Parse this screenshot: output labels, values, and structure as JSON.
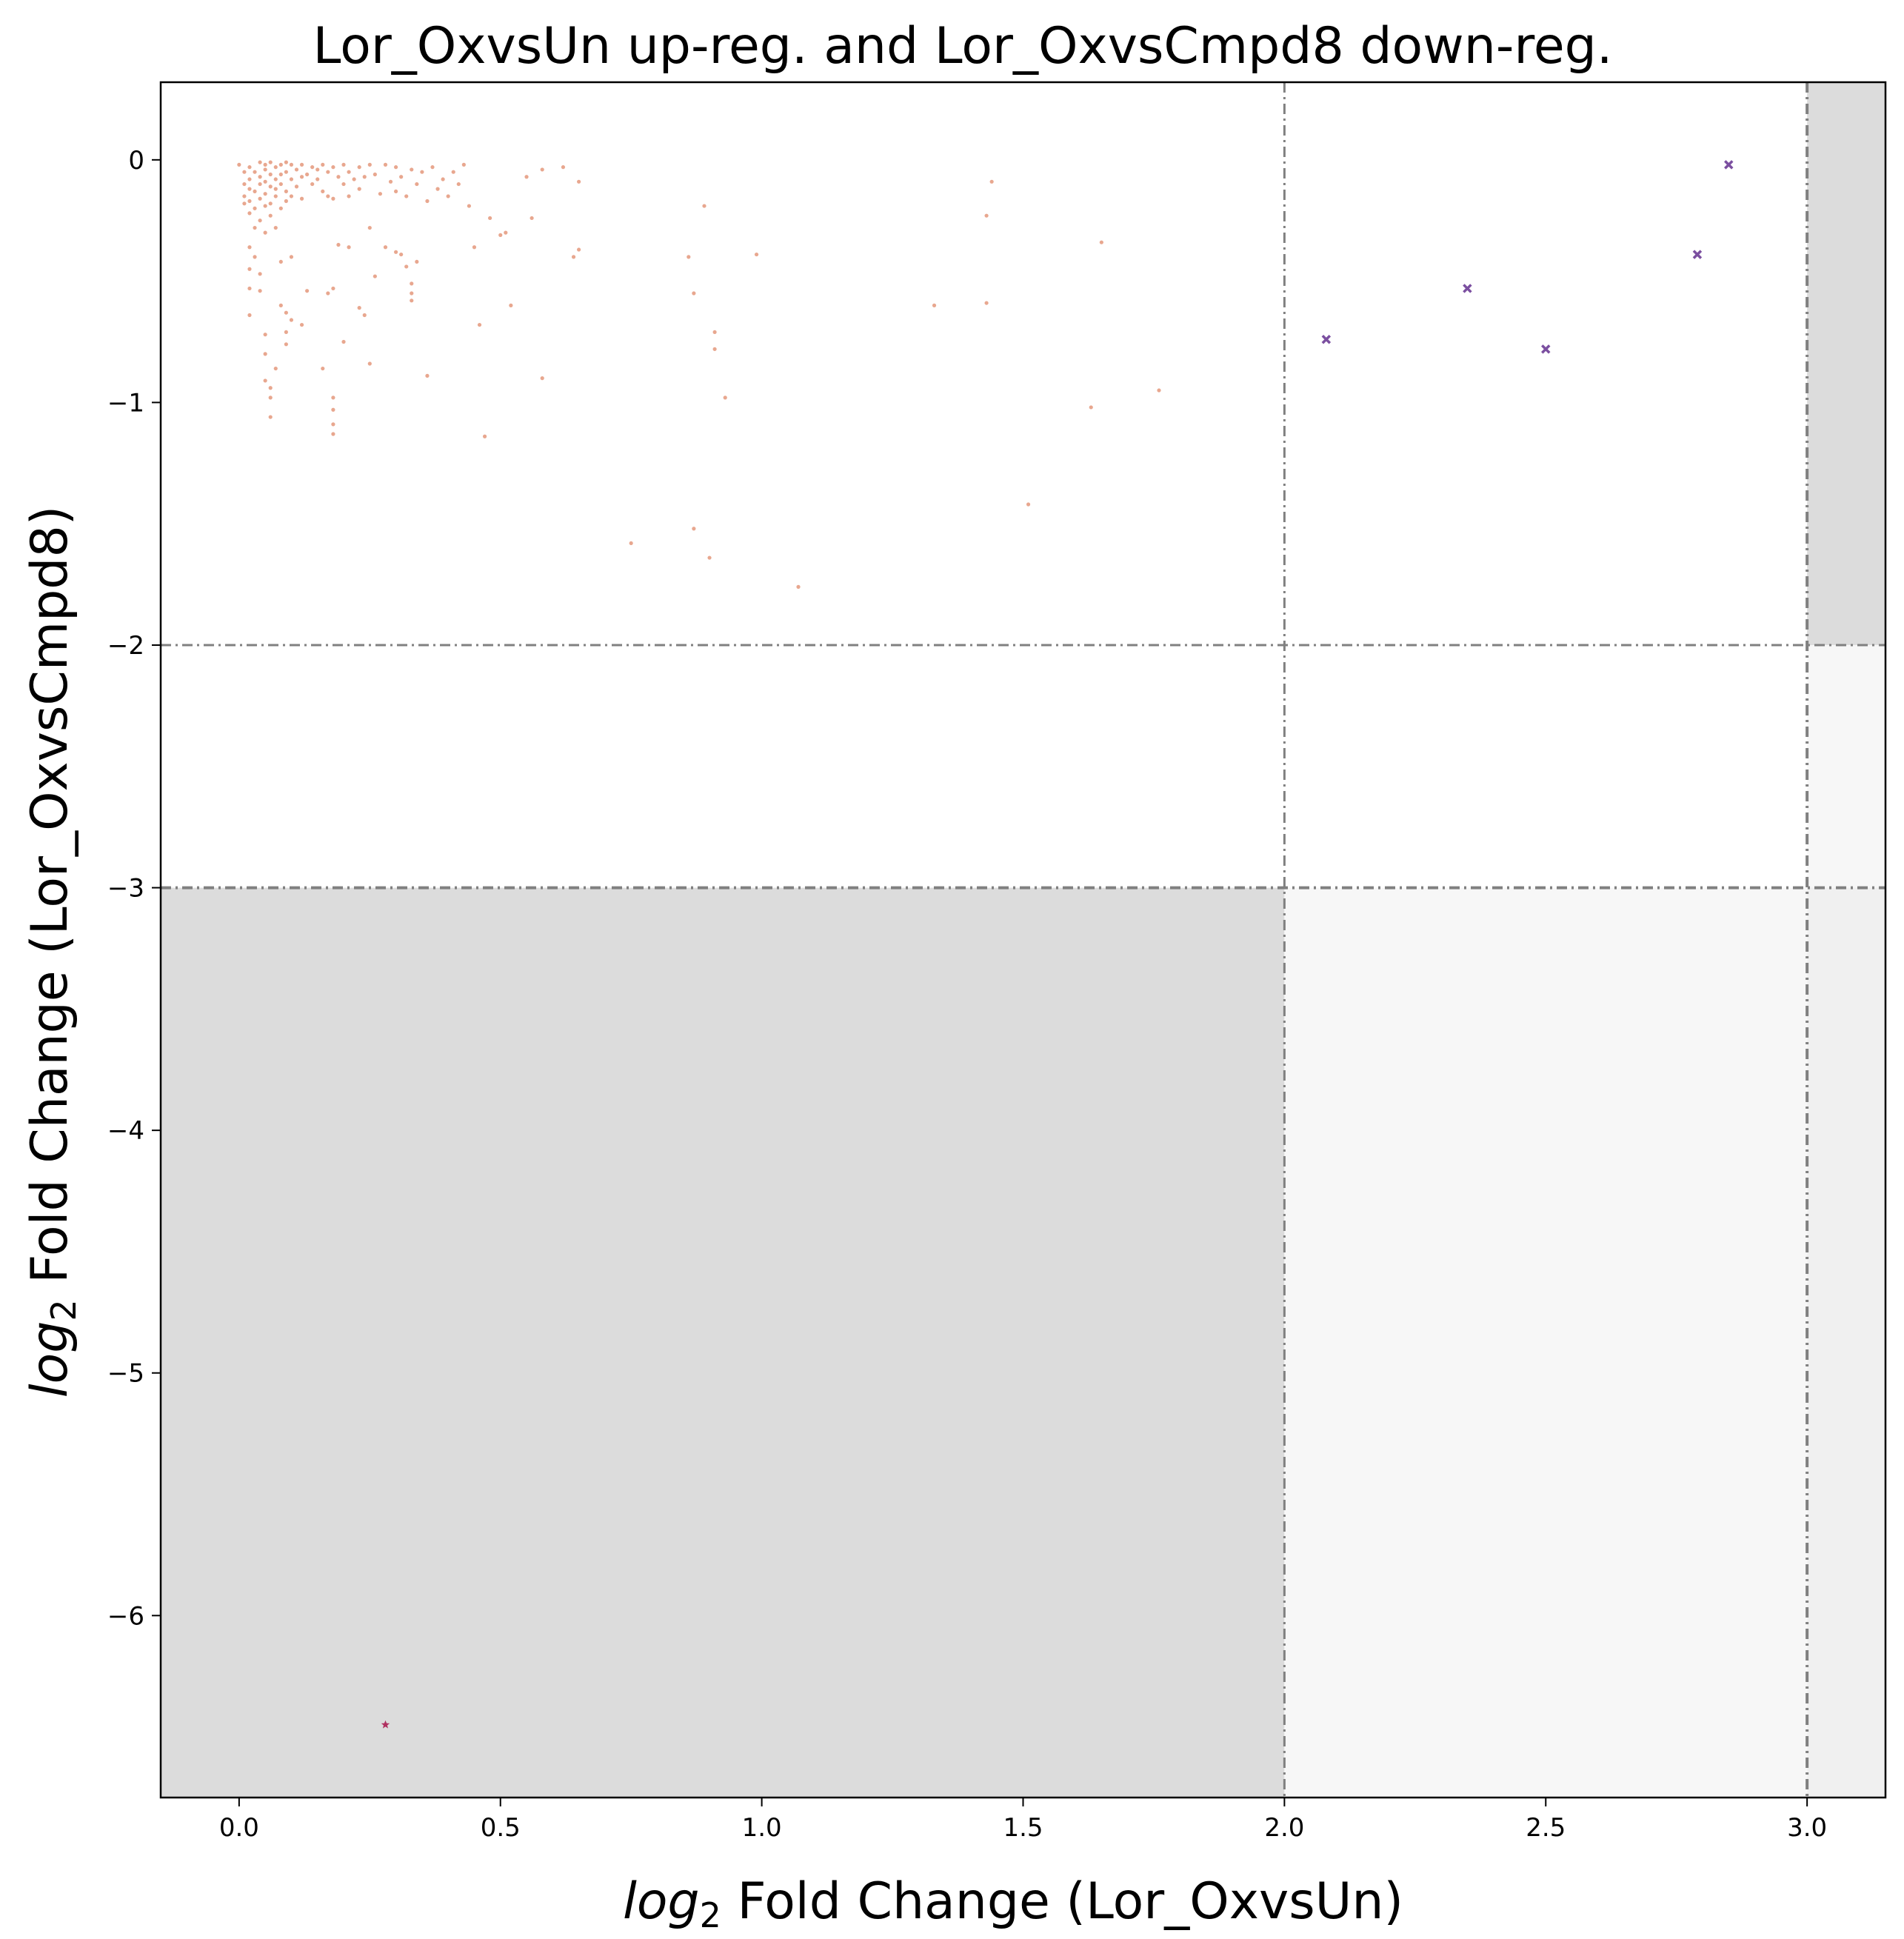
{
  "chart_data": {
    "type": "scatter",
    "title": "Lor_OxvsUn up-reg. and Lor_OxvsCmpd8 down-reg.",
    "xlabel": {
      "italic": "log",
      "sub": "2",
      "rest": " Fold Change (Lor_OxvsUn)"
    },
    "ylabel": {
      "italic": "log",
      "sub": "2",
      "rest": " Fold Change (Lor_OxvsCmpd8)"
    },
    "xlim": [
      -0.15,
      3.15
    ],
    "ylim": [
      -6.75,
      0.32
    ],
    "xticks": [
      0.0,
      0.5,
      1.0,
      1.5,
      2.0,
      2.5,
      3.0
    ],
    "xtick_labels": [
      "0.0",
      "0.5",
      "1.0",
      "1.5",
      "2.0",
      "2.5",
      "3.0"
    ],
    "yticks": [
      0,
      -1,
      -2,
      -3,
      -4,
      -5,
      -6
    ],
    "ytick_labels": [
      "0",
      "−1",
      "−2",
      "−3",
      "−4",
      "−5",
      "−6"
    ],
    "grid": false,
    "thresholds": {
      "x": [
        2.0,
        3.0
      ],
      "y": [
        -2.0,
        -3.0
      ]
    },
    "shaded_regions": [
      {
        "x": [
          -0.15,
          2.0
        ],
        "y": [
          -6.75,
          -3.0
        ],
        "color": "#dcdcdc"
      },
      {
        "x": [
          2.0,
          3.0
        ],
        "y": [
          -6.75,
          -3.0
        ],
        "color": "#f7f7f7"
      },
      {
        "x": [
          3.0,
          3.15
        ],
        "y": [
          -6.75,
          -3.0
        ],
        "color": "#f0f0f0"
      },
      {
        "x": [
          3.0,
          3.15
        ],
        "y": [
          -3.0,
          -2.0
        ],
        "color": "#f7f7f7"
      },
      {
        "x": [
          3.0,
          3.15
        ],
        "y": [
          -2.0,
          0.32
        ],
        "color": "#dcdcdc"
      }
    ],
    "colors": {
      "background_points": "#e08a6a",
      "highlighted": "#7b4fa0",
      "star": "#b03060",
      "threshold_line": "#808080"
    },
    "series": [
      {
        "marker": "dot",
        "points": [
          [
            0.0,
            -0.02
          ],
          [
            0.01,
            -0.05
          ],
          [
            0.01,
            -0.1
          ],
          [
            0.01,
            -0.15
          ],
          [
            0.01,
            -0.18
          ],
          [
            0.02,
            -0.03
          ],
          [
            0.02,
            -0.08
          ],
          [
            0.02,
            -0.12
          ],
          [
            0.02,
            -0.17
          ],
          [
            0.02,
            -0.22
          ],
          [
            0.03,
            -0.05
          ],
          [
            0.03,
            -0.13
          ],
          [
            0.03,
            -0.2
          ],
          [
            0.03,
            -0.28
          ],
          [
            0.04,
            -0.01
          ],
          [
            0.04,
            -0.07
          ],
          [
            0.04,
            -0.1
          ],
          [
            0.04,
            -0.16
          ],
          [
            0.04,
            -0.25
          ],
          [
            0.05,
            -0.02
          ],
          [
            0.05,
            -0.04
          ],
          [
            0.05,
            -0.09
          ],
          [
            0.05,
            -0.14
          ],
          [
            0.05,
            -0.19
          ],
          [
            0.05,
            -0.3
          ],
          [
            0.06,
            -0.01
          ],
          [
            0.06,
            -0.06
          ],
          [
            0.06,
            -0.11
          ],
          [
            0.06,
            -0.18
          ],
          [
            0.06,
            -0.23
          ],
          [
            0.07,
            -0.03
          ],
          [
            0.07,
            -0.08
          ],
          [
            0.07,
            -0.12
          ],
          [
            0.07,
            -0.15
          ],
          [
            0.07,
            -0.28
          ],
          [
            0.08,
            -0.02
          ],
          [
            0.08,
            -0.06
          ],
          [
            0.08,
            -0.1
          ],
          [
            0.08,
            -0.2
          ],
          [
            0.09,
            -0.01
          ],
          [
            0.09,
            -0.05
          ],
          [
            0.09,
            -0.13
          ],
          [
            0.09,
            -0.17
          ],
          [
            0.1,
            -0.02
          ],
          [
            0.1,
            -0.08
          ],
          [
            0.1,
            -0.15
          ],
          [
            0.1,
            -0.4
          ],
          [
            0.11,
            -0.04
          ],
          [
            0.11,
            -0.11
          ],
          [
            0.12,
            -0.02
          ],
          [
            0.12,
            -0.07
          ],
          [
            0.12,
            -0.16
          ],
          [
            0.13,
            -0.06
          ],
          [
            0.14,
            -0.03
          ],
          [
            0.14,
            -0.1
          ],
          [
            0.15,
            -0.04
          ],
          [
            0.15,
            -0.08
          ],
          [
            0.16,
            -0.02
          ],
          [
            0.16,
            -0.13
          ],
          [
            0.17,
            -0.05
          ],
          [
            0.17,
            -0.15
          ],
          [
            0.18,
            -0.03
          ],
          [
            0.18,
            -0.16
          ],
          [
            0.19,
            -0.07
          ],
          [
            0.2,
            -0.02
          ],
          [
            0.2,
            -0.1
          ],
          [
            0.21,
            -0.05
          ],
          [
            0.21,
            -0.15
          ],
          [
            0.22,
            -0.08
          ],
          [
            0.23,
            -0.03
          ],
          [
            0.23,
            -0.12
          ],
          [
            0.24,
            -0.07
          ],
          [
            0.25,
            -0.02
          ],
          [
            0.25,
            -0.28
          ],
          [
            0.26,
            -0.06
          ],
          [
            0.27,
            -0.14
          ],
          [
            0.28,
            -0.02
          ],
          [
            0.29,
            -0.09
          ],
          [
            0.3,
            -0.03
          ],
          [
            0.3,
            -0.13
          ],
          [
            0.31,
            -0.07
          ],
          [
            0.32,
            -0.15
          ],
          [
            0.33,
            -0.04
          ],
          [
            0.34,
            -0.1
          ],
          [
            0.35,
            -0.05
          ],
          [
            0.36,
            -0.17
          ],
          [
            0.37,
            -0.03
          ],
          [
            0.38,
            -0.12
          ],
          [
            0.39,
            -0.08
          ],
          [
            0.4,
            -0.15
          ],
          [
            0.41,
            -0.05
          ],
          [
            0.42,
            -0.1
          ],
          [
            0.43,
            -0.02
          ],
          [
            0.44,
            -0.19
          ],
          [
            0.02,
            -0.36
          ],
          [
            0.02,
            -0.45
          ],
          [
            0.02,
            -0.53
          ],
          [
            0.02,
            -0.64
          ],
          [
            0.03,
            -0.4
          ],
          [
            0.04,
            -0.47
          ],
          [
            0.04,
            -0.54
          ],
          [
            0.05,
            -0.72
          ],
          [
            0.05,
            -0.8
          ],
          [
            0.05,
            -0.91
          ],
          [
            0.06,
            -0.94
          ],
          [
            0.06,
            -0.98
          ],
          [
            0.06,
            -1.06
          ],
          [
            0.07,
            -0.86
          ],
          [
            0.08,
            -0.42
          ],
          [
            0.08,
            -0.6
          ],
          [
            0.09,
            -0.63
          ],
          [
            0.09,
            -0.71
          ],
          [
            0.09,
            -0.76
          ],
          [
            0.1,
            -0.66
          ],
          [
            0.12,
            -0.68
          ],
          [
            0.13,
            -0.54
          ],
          [
            0.16,
            -0.86
          ],
          [
            0.17,
            -0.55
          ],
          [
            0.18,
            -0.98
          ],
          [
            0.18,
            -1.03
          ],
          [
            0.18,
            -1.09
          ],
          [
            0.18,
            -1.13
          ],
          [
            0.18,
            -0.53
          ],
          [
            0.19,
            -0.35
          ],
          [
            0.2,
            -0.75
          ],
          [
            0.21,
            -0.36
          ],
          [
            0.23,
            -0.61
          ],
          [
            0.24,
            -0.64
          ],
          [
            0.25,
            -0.84
          ],
          [
            0.26,
            -0.48
          ],
          [
            0.28,
            -0.36
          ],
          [
            0.3,
            -0.38
          ],
          [
            0.31,
            -0.39
          ],
          [
            0.32,
            -0.44
          ],
          [
            0.33,
            -0.51
          ],
          [
            0.33,
            -0.55
          ],
          [
            0.33,
            -0.58
          ],
          [
            0.34,
            -0.42
          ],
          [
            0.36,
            -0.89
          ],
          [
            0.45,
            -0.36
          ],
          [
            0.46,
            -0.68
          ],
          [
            0.47,
            -1.14
          ],
          [
            0.48,
            -0.24
          ],
          [
            0.5,
            -0.31
          ],
          [
            0.51,
            -0.3
          ],
          [
            0.52,
            -0.6
          ],
          [
            0.55,
            -0.07
          ],
          [
            0.56,
            -0.24
          ],
          [
            0.58,
            -0.04
          ],
          [
            0.58,
            -0.9
          ],
          [
            0.62,
            -0.03
          ],
          [
            0.64,
            -0.4
          ],
          [
            0.65,
            -0.37
          ],
          [
            0.65,
            -0.09
          ],
          [
            0.75,
            -1.58
          ],
          [
            0.86,
            -0.4
          ],
          [
            0.87,
            -0.55
          ],
          [
            0.87,
            -1.52
          ],
          [
            0.89,
            -0.19
          ],
          [
            0.9,
            -1.64
          ],
          [
            0.91,
            -0.71
          ],
          [
            0.91,
            -0.78
          ],
          [
            0.93,
            -0.98
          ],
          [
            0.99,
            -0.39
          ],
          [
            1.07,
            -1.76
          ],
          [
            1.33,
            -0.6
          ],
          [
            1.43,
            -0.23
          ],
          [
            1.43,
            -0.59
          ],
          [
            1.44,
            -0.09
          ],
          [
            1.51,
            -1.42
          ],
          [
            1.63,
            -1.02
          ],
          [
            1.65,
            -0.34
          ],
          [
            1.76,
            -0.95
          ]
        ]
      },
      {
        "marker": "x",
        "points": [
          [
            2.08,
            -0.74
          ],
          [
            2.35,
            -0.53
          ],
          [
            2.5,
            -0.78
          ],
          [
            2.79,
            -0.39
          ],
          [
            2.85,
            -0.02
          ]
        ]
      },
      {
        "marker": "star",
        "points": [
          [
            0.28,
            -6.45
          ]
        ]
      }
    ]
  }
}
